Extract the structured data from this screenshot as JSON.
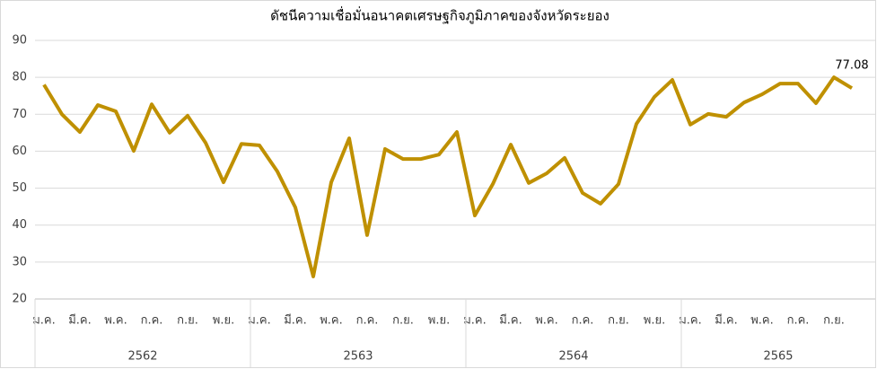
{
  "chart_data": {
    "type": "line",
    "title": "ดัชนีความเชื่อมั่นอนาคตเศรษฐกิจภูมิภาคของจังหวัดระยอง",
    "categories": [
      "ม.ค.",
      null,
      "มี.ค.",
      null,
      "พ.ค.",
      null,
      "ก.ค.",
      null,
      "ก.ย.",
      null,
      "พ.ย.",
      null,
      "ม.ค.",
      null,
      "มี.ค.",
      null,
      "พ.ค.",
      null,
      "ก.ค.",
      null,
      "ก.ย.",
      null,
      "พ.ย.",
      null,
      "ม.ค.",
      null,
      "มี.ค.",
      null,
      "พ.ค.",
      null,
      "ก.ค.",
      null,
      "ก.ย.",
      null,
      "พ.ย.",
      null,
      "ม.ค.",
      null,
      "มี.ค.",
      null,
      "พ.ค.",
      null,
      "ก.ค.",
      null,
      "ก.ย.",
      null
    ],
    "groups": [
      "2562",
      "2563",
      "2564",
      "2565"
    ],
    "series": [
      {
        "color": "#bf9000",
        "values": [
          78,
          70,
          65.2,
          72.5,
          70.8,
          60.1,
          72.7,
          65,
          69.6,
          62.3,
          51.6,
          62,
          61.6,
          54.5,
          44.8,
          26.1,
          51.6,
          63.5,
          37.3,
          60.6,
          57.9,
          57.9,
          59.1,
          65.2,
          42.6,
          51.1,
          61.8,
          51.4,
          54,
          58.2,
          48.7,
          45.8,
          51.1,
          67.4,
          74.7,
          79.3,
          67.2,
          70.1,
          69.3,
          73.2,
          75.4,
          78.3,
          78.3,
          73,
          80,
          77.08
        ],
        "value_labels": [
          null,
          null,
          null,
          null,
          null,
          null,
          null,
          null,
          null,
          null,
          null,
          null,
          null,
          null,
          null,
          null,
          null,
          null,
          null,
          null,
          null,
          null,
          null,
          null,
          null,
          null,
          null,
          null,
          null,
          null,
          null,
          null,
          null,
          null,
          null,
          null,
          null,
          null,
          null,
          null,
          null,
          null,
          null,
          null,
          null,
          "77.08"
        ]
      }
    ],
    "ylim": [
      20,
      90
    ],
    "yticks": [
      20,
      30,
      40,
      50,
      60,
      70,
      80,
      90
    ],
    "grid": true
  }
}
